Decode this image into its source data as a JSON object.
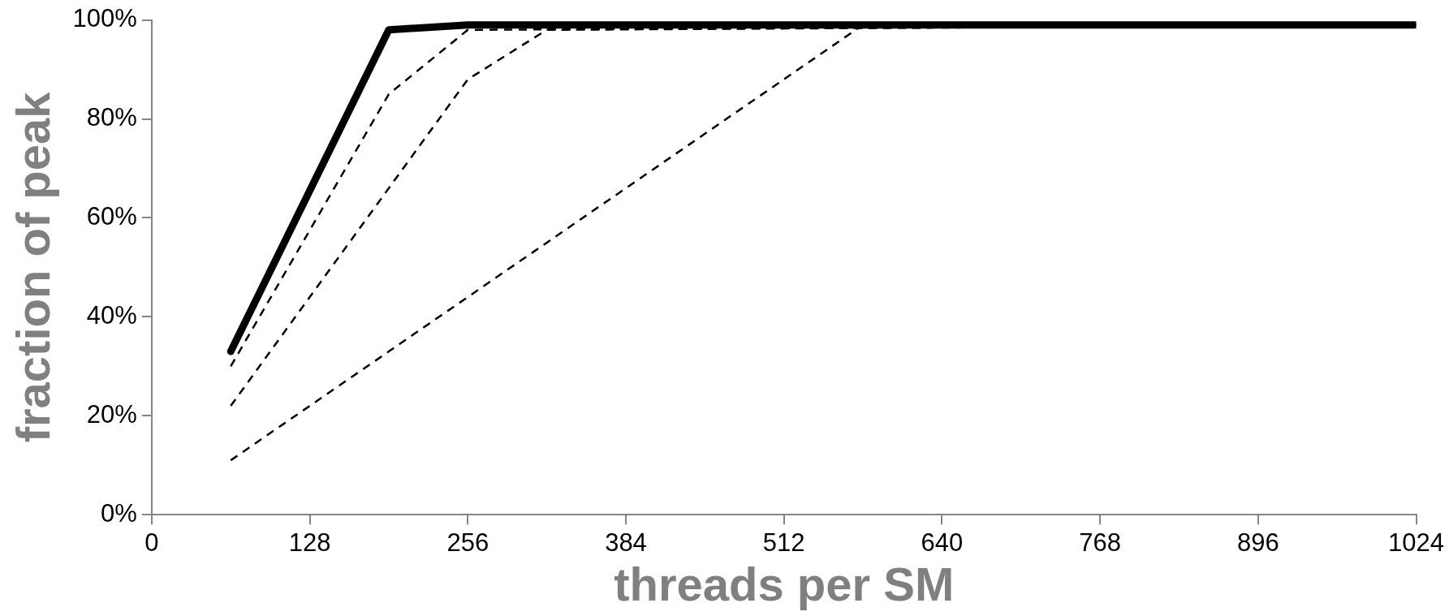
{
  "chart_data": {
    "type": "line",
    "xlabel": "threads per SM",
    "ylabel": "fraction of peak",
    "xlim": [
      0,
      1024
    ],
    "xticks": [
      0,
      128,
      256,
      384,
      512,
      640,
      768,
      896,
      1024
    ],
    "ylim": [
      0,
      100
    ],
    "yticks": [
      {
        "value": 0,
        "label": "0%"
      },
      {
        "value": 20,
        "label": "20%"
      },
      {
        "value": 40,
        "label": "40%"
      },
      {
        "value": 60,
        "label": "60%"
      },
      {
        "value": 80,
        "label": "80%"
      },
      {
        "value": 100,
        "label": "100%"
      }
    ],
    "grid": false,
    "legend": false,
    "series": [
      {
        "color": "#000000",
        "line_style": "solid",
        "x": [
          64,
          192,
          256,
          1024
        ],
        "values": [
          33,
          98,
          99,
          99
        ]
      },
      {
        "color": "#000000",
        "line_style": "dashed",
        "x": [
          64,
          192,
          256,
          1024
        ],
        "values": [
          30,
          85,
          98,
          99
        ]
      },
      {
        "color": "#000000",
        "line_style": "dashed",
        "x": [
          64,
          128,
          192,
          256,
          320,
          1024
        ],
        "values": [
          22,
          44,
          66,
          88,
          98,
          99
        ]
      },
      {
        "color": "#000000",
        "line_style": "dashed",
        "x": [
          64,
          128,
          192,
          256,
          320,
          384,
          448,
          512,
          576,
          1024
        ],
        "values": [
          11,
          22,
          33,
          44,
          55,
          66,
          77,
          88,
          99,
          99
        ]
      }
    ]
  }
}
